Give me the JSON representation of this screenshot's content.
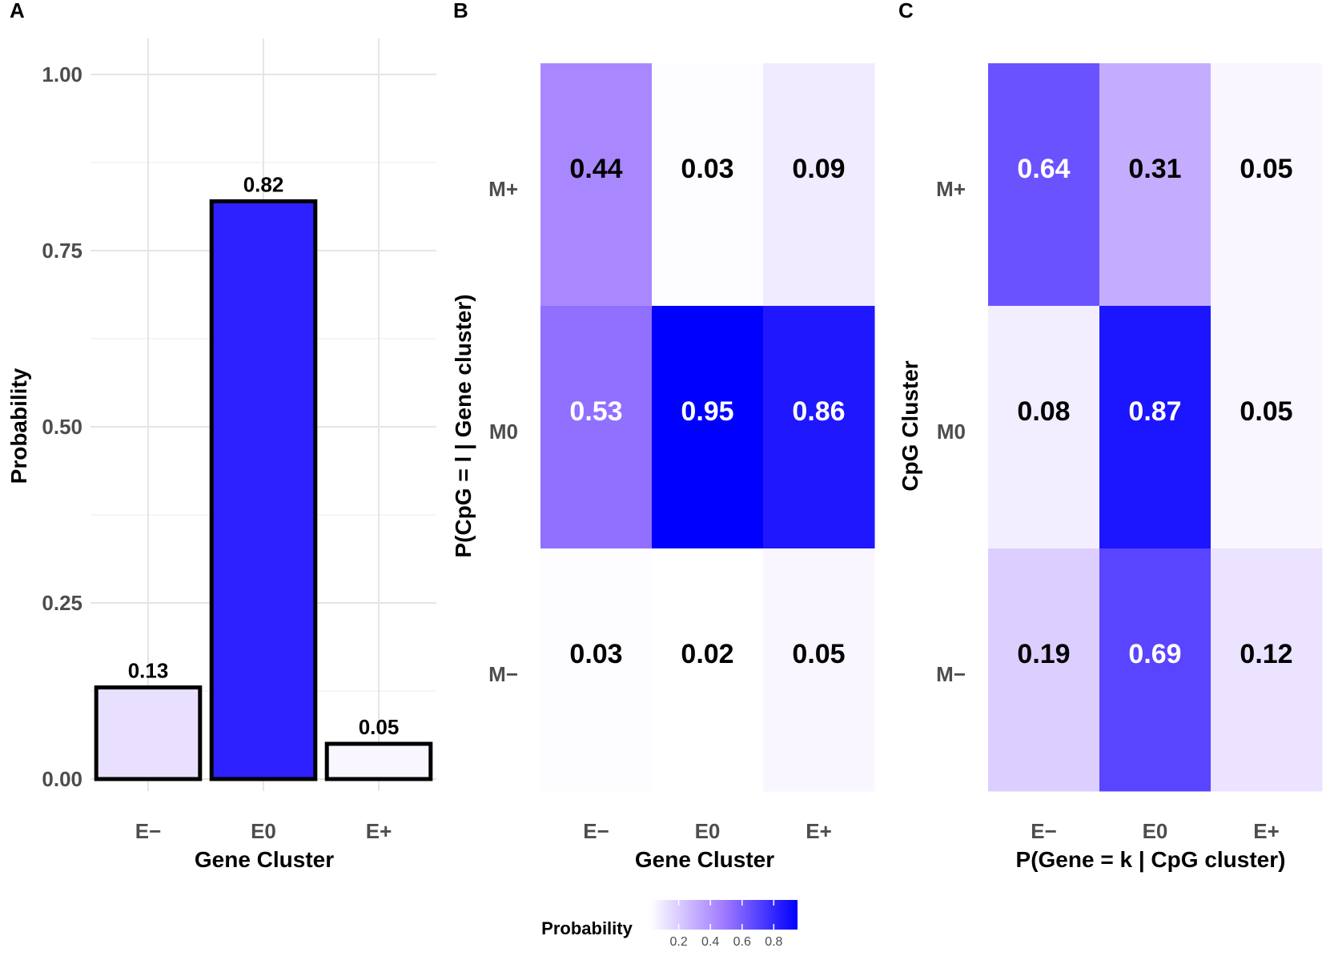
{
  "chart_data": [
    {
      "panel": "A",
      "type": "bar",
      "categories": [
        "E−",
        "E0",
        "E+"
      ],
      "values": [
        0.13,
        0.82,
        0.05
      ],
      "value_labels": [
        "0.13",
        "0.82",
        "0.05"
      ],
      "xlabel": "Gene Cluster",
      "ylabel": "Probability",
      "ylim": [
        0,
        1
      ],
      "yticks": [
        0,
        0.25,
        0.5,
        0.75,
        1.0
      ],
      "ytick_labels": [
        "0.00",
        "0.25",
        "0.50",
        "0.75",
        "1.00"
      ],
      "fill_scale": true,
      "grid": true
    },
    {
      "panel": "B",
      "type": "heatmap",
      "x_categories": [
        "E−",
        "E0",
        "E+"
      ],
      "y_categories": [
        "M+",
        "M0",
        "M−"
      ],
      "values": [
        [
          0.44,
          0.03,
          0.09
        ],
        [
          0.53,
          0.95,
          0.86
        ],
        [
          0.03,
          0.02,
          0.05
        ]
      ],
      "value_labels": [
        [
          "0.44",
          "0.03",
          "0.09"
        ],
        [
          "0.53",
          "0.95",
          "0.86"
        ],
        [
          "0.03",
          "0.02",
          "0.05"
        ]
      ],
      "xlabel": "Gene Cluster",
      "ylabel": "P(CpG = l | Gene cluster)"
    },
    {
      "panel": "C",
      "type": "heatmap",
      "x_categories": [
        "E−",
        "E0",
        "E+"
      ],
      "y_categories": [
        "M+",
        "M0",
        "M−"
      ],
      "values": [
        [
          0.64,
          0.31,
          0.05
        ],
        [
          0.08,
          0.87,
          0.05
        ],
        [
          0.19,
          0.69,
          0.12
        ]
      ],
      "value_labels": [
        [
          "0.64",
          "0.31",
          "0.05"
        ],
        [
          "0.08",
          "0.87",
          "0.05"
        ],
        [
          "0.19",
          "0.69",
          "0.12"
        ]
      ],
      "xlabel": "P(Gene = k | CpG cluster)",
      "ylabel": "CpG Cluster"
    }
  ],
  "legend": {
    "title": "Probability",
    "ticks": [
      0.2,
      0.4,
      0.6,
      0.8
    ],
    "tick_labels": [
      "0.2",
      "0.4",
      "0.6",
      "0.8"
    ],
    "range": [
      0.02,
      0.95
    ],
    "color_low": "#ffffff",
    "color_high": "#0000ff",
    "placement": "bottom-center"
  },
  "colors": {
    "scale_low": "#ffffff",
    "scale_high": "#0000ff",
    "bar_border": "#000000",
    "grid": "#e5e5e5",
    "text_dark": "#000000",
    "text_light": "#ffffff",
    "tick_text": "#4d4d4d"
  }
}
